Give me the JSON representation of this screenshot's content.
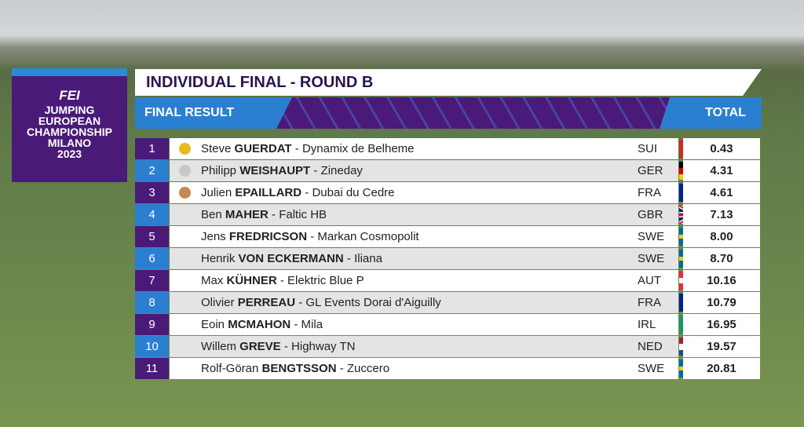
{
  "logo": {
    "brand": "FEI",
    "lines": [
      "JUMPING",
      "EUROPEAN",
      "CHAMPIONSHIP",
      "MILANO",
      "2023"
    ]
  },
  "header": {
    "title": "INDIVIDUAL FINAL - ROUND B",
    "left": "FINAL RESULT",
    "right": "TOTAL"
  },
  "separator": "-",
  "table": {
    "rows": [
      {
        "rank": 1,
        "first": "Steve",
        "last": "GUERDAT",
        "horse": "Dynamix de Belheme",
        "nation": "SUI",
        "total": "0.43"
      },
      {
        "rank": 2,
        "first": "Philipp",
        "last": "WEISHAUPT",
        "horse": "Zineday",
        "nation": "GER",
        "total": "4.31"
      },
      {
        "rank": 3,
        "first": "Julien",
        "last": "EPAILLARD",
        "horse": "Dubai du Cedre",
        "nation": "FRA",
        "total": "4.61"
      },
      {
        "rank": 4,
        "first": "Ben",
        "last": "MAHER",
        "horse": "Faltic HB",
        "nation": "GBR",
        "total": "7.13"
      },
      {
        "rank": 5,
        "first": "Jens",
        "last": "FREDRICSON",
        "horse": "Markan Cosmopolit",
        "nation": "SWE",
        "total": "8.00"
      },
      {
        "rank": 6,
        "first": "Henrik",
        "last": "VON ECKERMANN",
        "horse": "Iliana",
        "nation": "SWE",
        "total": "8.70"
      },
      {
        "rank": 7,
        "first": "Max",
        "last": "KÜHNER",
        "horse": "Elektric Blue P",
        "nation": "AUT",
        "total": "10.16"
      },
      {
        "rank": 8,
        "first": "Olivier",
        "last": "PERREAU",
        "horse": "GL Events Dorai d'Aiguilly",
        "nation": "FRA",
        "total": "10.79"
      },
      {
        "rank": 9,
        "first": "Eoin",
        "last": "MCMAHON",
        "horse": "Mila",
        "nation": "IRL",
        "total": "16.95"
      },
      {
        "rank": 10,
        "first": "Willem",
        "last": "GREVE",
        "horse": "Highway TN",
        "nation": "NED",
        "total": "19.57"
      },
      {
        "rank": 11,
        "first": "Rolf-Göran",
        "last": "BENGTSSON",
        "horse": "Zuccero",
        "nation": "SWE",
        "total": "20.81"
      }
    ]
  }
}
